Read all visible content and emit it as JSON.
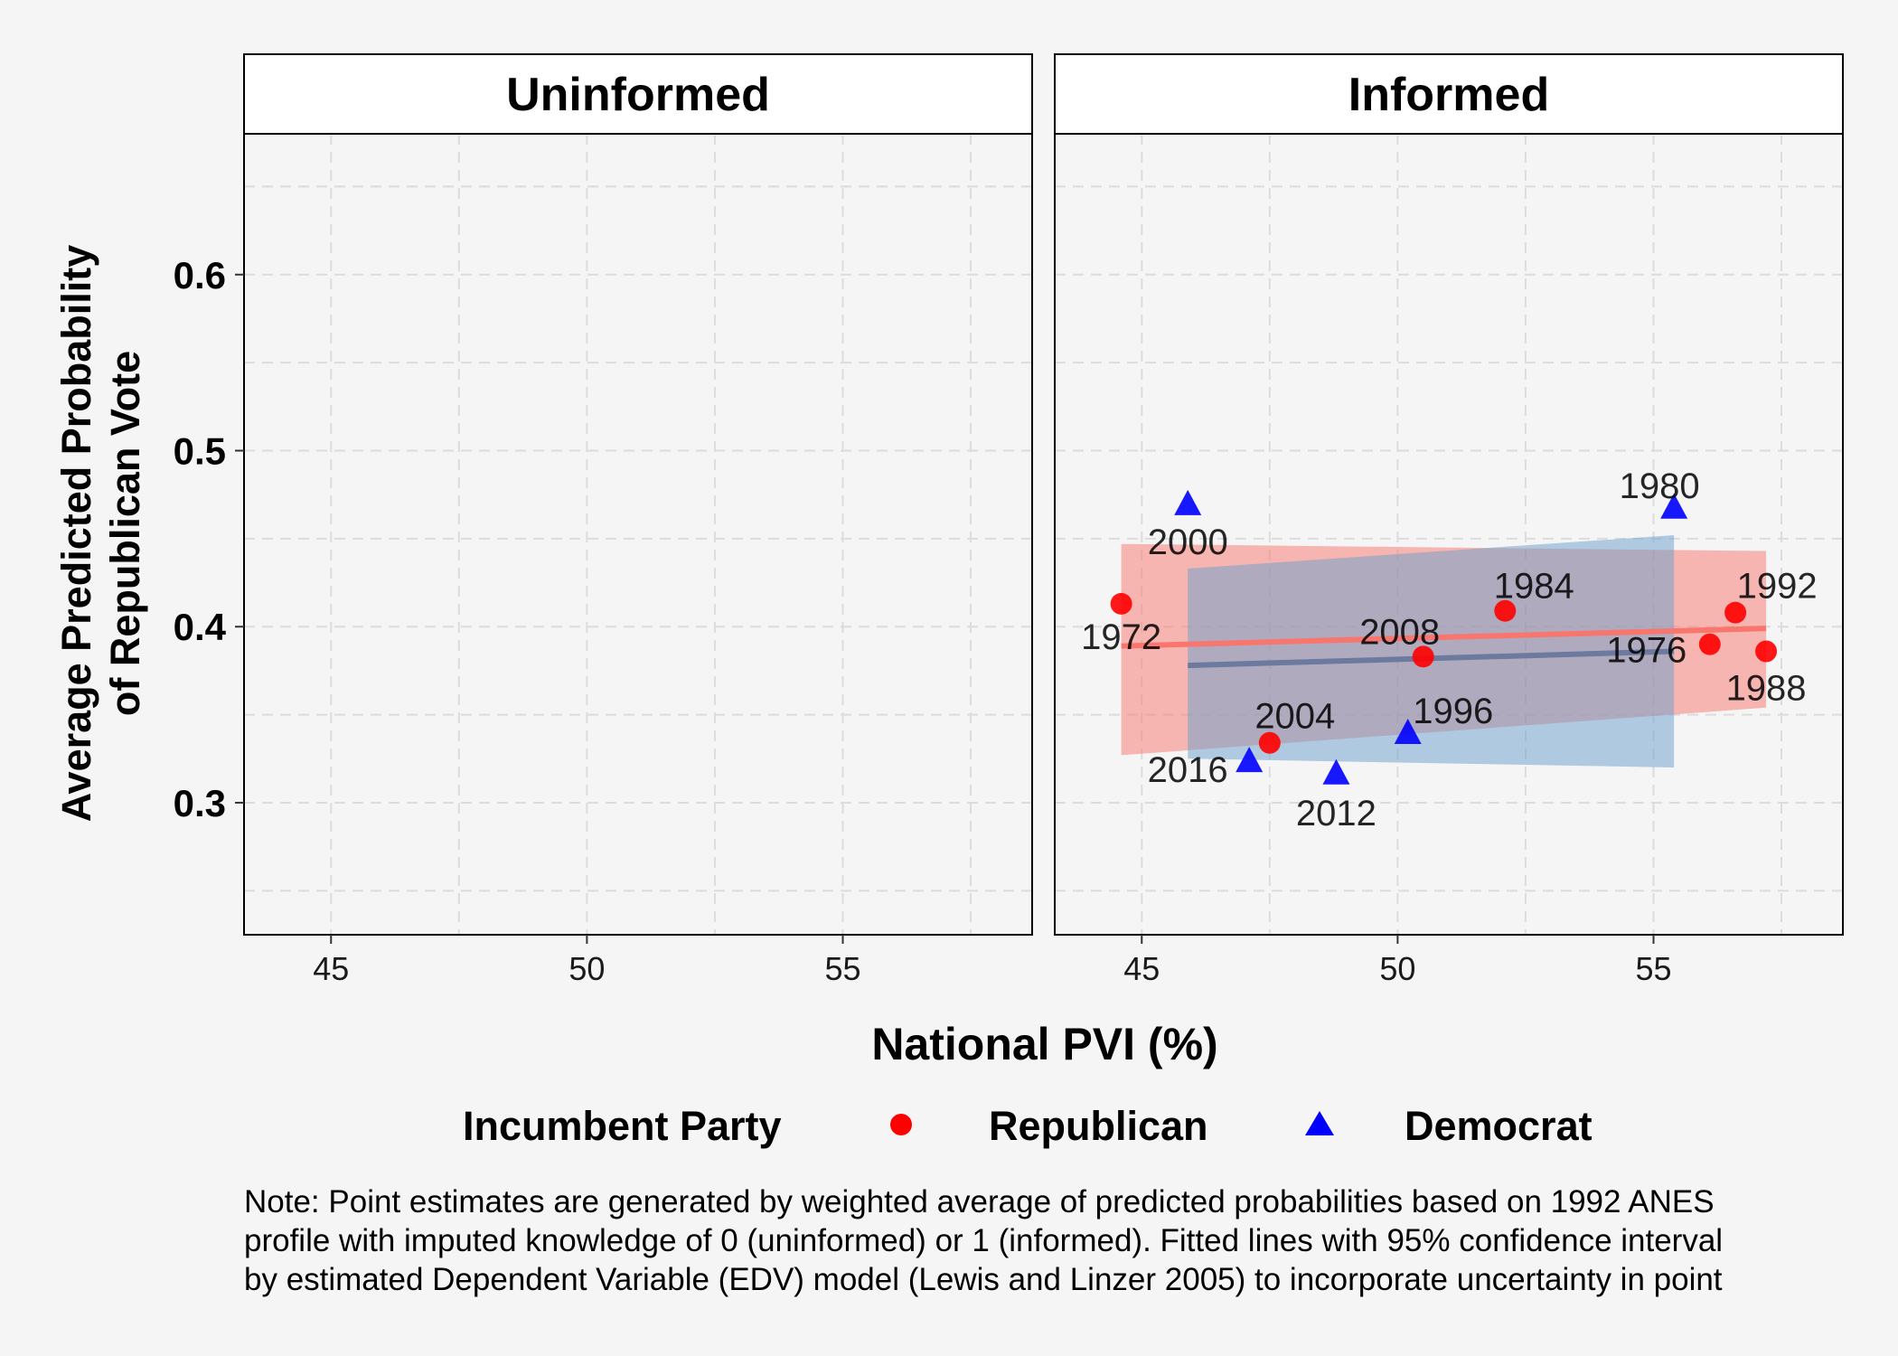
{
  "chart_data": {
    "type": "scatter",
    "facets": [
      "Uninformed",
      "Informed"
    ],
    "xlabel": "National PVI (%)",
    "ylabel_lines": [
      "Average Predicted Probability",
      "of Republican Vote"
    ],
    "xlim": [
      43.3,
      58.7
    ],
    "ylim": [
      0.225,
      0.68
    ],
    "xticks": [
      45,
      50,
      55
    ],
    "yticks": [
      0.3,
      0.4,
      0.5,
      0.6
    ],
    "ytick_labels": [
      "0.3",
      "0.4",
      "0.5",
      "0.6"
    ],
    "legend": {
      "title": "Incumbent Party",
      "position": "bottom",
      "items": [
        {
          "label": "Republican",
          "shape": "circle",
          "color": "#FF0000"
        },
        {
          "label": "Democrat",
          "shape": "triangle",
          "color": "#0000FF"
        }
      ]
    },
    "series": [
      {
        "name": "Republican",
        "color": "#FF0000",
        "shape": "circle",
        "facet": "Informed",
        "points": [
          {
            "label": "1972",
            "x": 44.6,
            "y": 0.413
          },
          {
            "label": "2004",
            "x": 47.5,
            "y": 0.334
          },
          {
            "label": "2008",
            "x": 50.5,
            "y": 0.383
          },
          {
            "label": "1984",
            "x": 52.1,
            "y": 0.409
          },
          {
            "label": "1976",
            "x": 56.1,
            "y": 0.39
          },
          {
            "label": "1992",
            "x": 56.6,
            "y": 0.408
          },
          {
            "label": "1988",
            "x": 57.2,
            "y": 0.386
          }
        ],
        "fit": {
          "x": [
            44.6,
            57.2
          ],
          "y": [
            0.389,
            0.399
          ]
        },
        "ci": {
          "x": [
            44.6,
            57.2
          ],
          "upper": [
            0.447,
            0.443
          ],
          "lower": [
            0.327,
            0.354
          ]
        },
        "ci_color": "#F8766D"
      },
      {
        "name": "Democrat",
        "color": "#0000FF",
        "shape": "triangle",
        "facet": "Informed",
        "points": [
          {
            "label": "2000",
            "x": 45.9,
            "y": 0.469
          },
          {
            "label": "2016",
            "x": 47.1,
            "y": 0.323
          },
          {
            "label": "2012",
            "x": 48.8,
            "y": 0.316
          },
          {
            "label": "1996",
            "x": 50.2,
            "y": 0.339
          },
          {
            "label": "1980",
            "x": 55.4,
            "y": 0.467
          }
        ],
        "fit": {
          "x": [
            45.9,
            55.4
          ],
          "y": [
            0.378,
            0.386
          ]
        },
        "ci": {
          "x": [
            45.9,
            55.4
          ],
          "upper": [
            0.433,
            0.452
          ],
          "lower": [
            0.325,
            0.32
          ]
        },
        "ci_color": "#6A9FCB"
      }
    ]
  },
  "note_lines": [
    "Note: Point estimates are generated by weighted average of predicted probabilities based on 1992 ANES",
    "profile with imputed knowledge of 0 (uninformed) or 1 (informed). Fitted lines with 95% confidence interval",
    "by estimated Dependent Variable (EDV) model (Lewis and Linzer 2005) to incorporate uncertainty in point"
  ]
}
